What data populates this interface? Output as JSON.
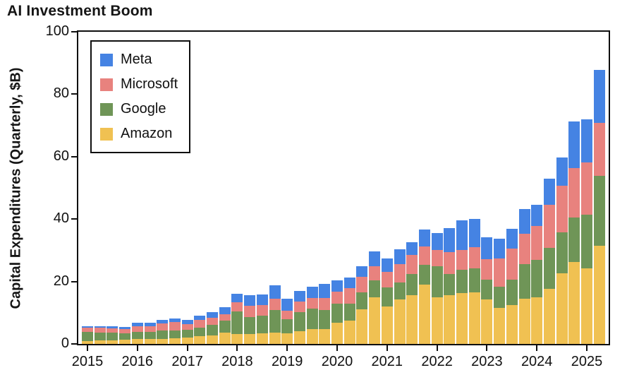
{
  "title": "AI Investment Boom",
  "chart_data": {
    "type": "bar",
    "stacked": true,
    "title": "AI Investment Boom",
    "ylabel": "Capital Expenditures (Quarterly, $B)",
    "xlabel": "",
    "ylim": [
      0,
      100
    ],
    "yticks": [
      0,
      20,
      40,
      60,
      80,
      100
    ],
    "xticks": [
      "2015",
      "2016",
      "2017",
      "2018",
      "2019",
      "2020",
      "2021",
      "2022",
      "2023",
      "2024",
      "2025"
    ],
    "grid": false,
    "legend_position": "upper-left",
    "legend_order": [
      "Meta",
      "Microsoft",
      "Google",
      "Amazon"
    ],
    "quarters": [
      "2015 Q1",
      "2015 Q2",
      "2015 Q3",
      "2015 Q4",
      "2016 Q1",
      "2016 Q2",
      "2016 Q3",
      "2016 Q4",
      "2017 Q1",
      "2017 Q2",
      "2017 Q3",
      "2017 Q4",
      "2018 Q1",
      "2018 Q2",
      "2018 Q3",
      "2018 Q4",
      "2019 Q1",
      "2019 Q2",
      "2019 Q3",
      "2019 Q4",
      "2020 Q1",
      "2020 Q2",
      "2020 Q3",
      "2020 Q4",
      "2021 Q1",
      "2021 Q2",
      "2021 Q3",
      "2021 Q4",
      "2022 Q1",
      "2022 Q2",
      "2022 Q3",
      "2022 Q4",
      "2023 Q1",
      "2023 Q2",
      "2023 Q3",
      "2023 Q4",
      "2024 Q1",
      "2024 Q2",
      "2024 Q3",
      "2024 Q4",
      "2025 Q1",
      "2025 Q2"
    ],
    "series": [
      {
        "name": "Amazon",
        "color": "#f0c152",
        "values": [
          0.9,
          1.2,
          1.2,
          1.3,
          1.5,
          1.7,
          1.7,
          1.8,
          2.1,
          2.5,
          2.7,
          3.6,
          3.1,
          3.2,
          3.4,
          3.7,
          3.4,
          4.0,
          4.7,
          4.8,
          6.8,
          7.5,
          11.1,
          14.9,
          12.1,
          14.3,
          15.7,
          19.0,
          15.0,
          15.7,
          16.4,
          16.6,
          14.2,
          11.5,
          12.5,
          14.6,
          14.9,
          17.6,
          22.6,
          26.3,
          24.3,
          31.4
        ]
      },
      {
        "name": "Google",
        "color": "#6f9557",
        "values": [
          2.9,
          2.5,
          2.4,
          2.1,
          2.4,
          2.1,
          2.6,
          2.6,
          2.5,
          2.8,
          3.5,
          3.8,
          7.3,
          5.5,
          5.6,
          7.1,
          4.6,
          6.1,
          6.7,
          6.1,
          6.0,
          5.4,
          5.4,
          5.5,
          5.9,
          5.5,
          6.8,
          6.4,
          9.8,
          6.8,
          7.3,
          7.6,
          6.3,
          6.9,
          8.1,
          11.0,
          12.0,
          13.2,
          13.1,
          14.3,
          17.2,
          22.4
        ]
      },
      {
        "name": "Microsoft",
        "color": "#e8827e",
        "values": [
          1.4,
          1.4,
          1.3,
          1.3,
          1.7,
          1.9,
          2.2,
          2.5,
          1.7,
          2.3,
          2.1,
          2.1,
          2.9,
          3.5,
          3.5,
          3.7,
          2.6,
          3.4,
          3.4,
          3.9,
          3.9,
          4.9,
          4.9,
          4.5,
          5.1,
          5.8,
          5.9,
          5.9,
          5.3,
          6.9,
          6.3,
          6.8,
          6.6,
          8.9,
          9.9,
          9.7,
          11.0,
          13.9,
          14.9,
          15.8,
          16.7,
          17.1
        ]
      },
      {
        "name": "Meta",
        "color": "#4583e3",
        "values": [
          0.5,
          0.5,
          0.8,
          0.7,
          1.1,
          1.2,
          1.1,
          1.2,
          1.3,
          1.4,
          1.8,
          2.3,
          2.8,
          3.5,
          3.3,
          4.4,
          3.8,
          3.5,
          3.5,
          4.5,
          3.7,
          3.4,
          3.5,
          4.8,
          4.4,
          4.8,
          4.3,
          5.4,
          5.5,
          7.7,
          9.5,
          9.0,
          7.1,
          6.4,
          6.5,
          7.9,
          6.7,
          8.2,
          9.2,
          14.8,
          13.7,
          17.0
        ]
      }
    ]
  }
}
